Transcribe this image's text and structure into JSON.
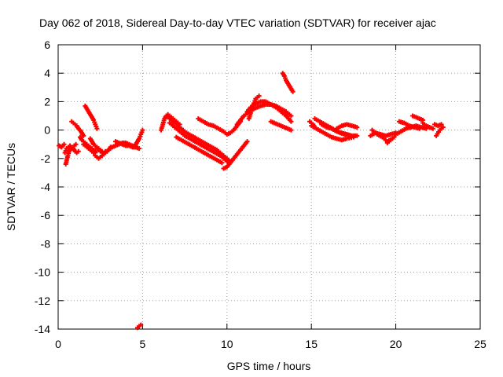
{
  "chart_data": {
    "type": "scatter",
    "title": "Day 062 of 2018, Sidereal Day-to-day VTEC variation (SDTVAR) for receiver ajac",
    "xlabel": "GPS time / hours",
    "ylabel": "SDTVAR / TECUs",
    "xlim": [
      0,
      25
    ],
    "ylim": [
      -14,
      6
    ],
    "xticks": [
      0,
      5,
      10,
      15,
      20,
      25
    ],
    "yticks": [
      6,
      4,
      2,
      0,
      -2,
      -4,
      -6,
      -8,
      -10,
      -12,
      -14
    ],
    "grid": true,
    "marker": "plus",
    "series": [
      {
        "name": "SDTVAR",
        "color": "#ff0000",
        "traces": [
          {
            "x": [
              0.05,
              0.2,
              0.35
            ],
            "y": [
              -1.1,
              -1.2,
              -1.0
            ]
          },
          {
            "x": [
              0.45,
              0.55,
              0.65,
              0.75,
              0.85,
              0.95,
              1.05
            ],
            "y": [
              -2.4,
              -1.9,
              -1.5,
              -1.3,
              -1.2,
              -1.1,
              -1.0
            ]
          },
          {
            "x": [
              0.4,
              0.5,
              0.6,
              0.7,
              0.8,
              0.9,
              1.0,
              1.1,
              1.2
            ],
            "y": [
              -1.6,
              -1.3,
              -1.2,
              -1.1,
              -1.2,
              -1.3,
              -1.5,
              -1.6,
              -1.5
            ]
          },
          {
            "x": [
              0.8,
              0.9,
              1.0,
              1.1,
              1.2,
              1.3,
              1.4,
              1.5
            ],
            "y": [
              0.6,
              0.5,
              0.4,
              0.3,
              0.1,
              0.0,
              -0.2,
              -0.4
            ]
          },
          {
            "x": [
              1.3,
              1.4,
              1.5,
              1.6,
              1.7,
              1.8,
              1.9,
              2.0,
              2.1,
              2.2
            ],
            "y": [
              -0.5,
              -0.7,
              -0.8,
              -0.9,
              -1.0,
              -1.1,
              -1.2,
              -1.3,
              -1.4,
              -1.5
            ]
          },
          {
            "x": [
              1.5,
              1.6,
              1.7,
              1.8,
              1.9,
              2.0,
              2.1,
              2.2
            ],
            "y": [
              -1.0,
              -1.1,
              -1.2,
              -1.3,
              -1.4,
              -1.5,
              -1.6,
              -1.6
            ]
          },
          {
            "x": [
              1.6,
              1.7,
              1.8,
              1.9,
              2.0,
              2.1,
              2.2,
              2.3
            ],
            "y": [
              1.7,
              1.5,
              1.3,
              1.1,
              0.9,
              0.7,
              0.4,
              0.1
            ]
          },
          {
            "x": [
              1.9,
              2.0,
              2.1,
              2.2,
              2.3,
              2.4,
              2.5,
              2.6
            ],
            "y": [
              -0.6,
              -0.8,
              -1.0,
              -1.1,
              -1.2,
              -1.3,
              -1.4,
              -1.5
            ]
          },
          {
            "x": [
              2.2,
              2.3,
              2.4,
              2.5,
              2.6,
              2.7,
              2.8,
              2.9,
              3.0,
              3.1
            ],
            "y": [
              -1.8,
              -1.9,
              -2.0,
              -1.9,
              -1.8,
              -1.7,
              -1.6,
              -1.5,
              -1.4,
              -1.2
            ]
          },
          {
            "x": [
              2.3,
              2.4,
              2.5,
              2.6,
              2.7,
              2.8,
              2.9,
              3.0,
              3.1,
              3.2
            ],
            "y": [
              -1.3,
              -1.4,
              -1.5,
              -1.6,
              -1.6,
              -1.5,
              -1.5,
              -1.4,
              -1.3,
              -1.2
            ]
          },
          {
            "x": [
              3.2,
              3.4,
              3.6,
              3.8,
              4.0,
              4.2,
              4.4,
              4.6
            ],
            "y": [
              -1.2,
              -1.1,
              -1.0,
              -0.9,
              -0.9,
              -1.0,
              -1.1,
              -1.2
            ]
          },
          {
            "x": [
              3.4,
              3.6,
              3.8,
              4.0,
              4.2,
              4.4,
              4.6,
              4.8
            ],
            "y": [
              -0.8,
              -0.9,
              -1.0,
              -1.1,
              -1.1,
              -1.2,
              -1.2,
              -1.3
            ]
          },
          {
            "x": [
              4.5,
              4.6,
              4.7,
              4.8,
              4.9,
              5.0
            ],
            "y": [
              -1.2,
              -1.0,
              -0.8,
              -0.6,
              -0.3,
              0.0
            ]
          },
          {
            "x": [
              4.7,
              4.8,
              4.9
            ],
            "y": [
              -13.9,
              -13.8,
              -13.7
            ]
          },
          {
            "x": [
              6.1,
              6.2,
              6.3,
              6.4,
              6.5,
              6.6,
              6.8,
              7.0,
              7.2
            ],
            "y": [
              0.0,
              0.4,
              0.8,
              1.0,
              1.1,
              1.0,
              0.8,
              0.6,
              0.4
            ]
          },
          {
            "x": [
              6.4,
              6.7,
              7.0,
              7.3,
              7.6,
              7.9,
              8.2,
              8.5,
              8.8,
              9.1,
              9.4,
              9.7,
              10.0,
              10.2
            ],
            "y": [
              1.0,
              0.7,
              0.4,
              0.1,
              -0.2,
              -0.4,
              -0.6,
              -0.8,
              -1.0,
              -1.2,
              -1.4,
              -1.7,
              -2.0,
              -2.2
            ]
          },
          {
            "x": [
              6.6,
              6.9,
              7.2,
              7.5,
              7.8,
              8.1,
              8.4,
              8.7,
              9.0,
              9.3,
              9.6,
              9.9,
              10.1
            ],
            "y": [
              0.5,
              0.2,
              -0.1,
              -0.4,
              -0.6,
              -0.8,
              -1.0,
              -1.2,
              -1.4,
              -1.6,
              -1.8,
              -2.1,
              -2.3
            ]
          },
          {
            "x": [
              7.0,
              7.3,
              7.6,
              7.9,
              8.2,
              8.5,
              8.8,
              9.1,
              9.4,
              9.7
            ],
            "y": [
              -0.5,
              -0.7,
              -0.9,
              -1.1,
              -1.3,
              -1.5,
              -1.7,
              -1.9,
              -2.1,
              -2.3
            ]
          },
          {
            "x": [
              9.8,
              10.0,
              10.2,
              10.4,
              10.6,
              10.8,
              11.0,
              11.2
            ],
            "y": [
              -2.7,
              -2.6,
              -2.3,
              -2.0,
              -1.7,
              -1.4,
              -1.1,
              -0.8
            ]
          },
          {
            "x": [
              8.3,
              8.6,
              8.9,
              9.2,
              9.5,
              9.8,
              10.0,
              10.2,
              10.4,
              10.6,
              10.8
            ],
            "y": [
              0.8,
              0.6,
              0.4,
              0.3,
              0.1,
              -0.1,
              -0.3,
              -0.2,
              0.0,
              0.3,
              0.6
            ]
          },
          {
            "x": [
              10.6,
              10.8,
              11.0,
              11.2,
              11.4,
              11.6,
              11.8,
              12.0,
              12.3,
              12.6,
              12.9,
              13.2,
              13.5,
              13.8
            ],
            "y": [
              0.4,
              0.7,
              1.0,
              1.2,
              1.4,
              1.5,
              1.6,
              1.7,
              1.8,
              1.8,
              1.7,
              1.5,
              1.3,
              1.0
            ]
          },
          {
            "x": [
              11.2,
              11.4,
              11.6,
              11.8,
              12.0,
              12.3,
              12.6,
              12.9,
              13.2,
              13.5,
              13.8
            ],
            "y": [
              1.3,
              1.6,
              1.8,
              1.9,
              2.0,
              2.0,
              1.8,
              1.6,
              1.3,
              1.0,
              0.6
            ]
          },
          {
            "x": [
              11.3,
              11.5,
              11.7,
              11.9
            ],
            "y": [
              0.8,
              1.6,
              2.2,
              2.4
            ]
          },
          {
            "x": [
              12.6,
              12.8,
              13.0,
              13.2,
              13.4,
              13.6,
              13.8
            ],
            "y": [
              0.6,
              0.5,
              0.4,
              0.3,
              0.2,
              0.1,
              0.0
            ]
          },
          {
            "x": [
              13.3,
              13.4,
              13.5,
              13.6,
              13.7,
              13.8,
              13.9
            ],
            "y": [
              4.0,
              3.8,
              3.5,
              3.3,
              3.1,
              2.9,
              2.7
            ]
          },
          {
            "x": [
              14.9,
              15.0,
              15.1,
              15.2
            ],
            "y": [
              0.6,
              0.5,
              0.4,
              0.2
            ]
          },
          {
            "x": [
              15.2,
              15.5,
              15.8,
              16.1,
              16.4,
              16.7,
              17.0,
              17.3
            ],
            "y": [
              0.8,
              0.6,
              0.4,
              0.2,
              0.0,
              -0.2,
              -0.3,
              -0.4
            ]
          },
          {
            "x": [
              15.0,
              15.3,
              15.6,
              15.9,
              16.2,
              16.5,
              16.8,
              17.1,
              17.5
            ],
            "y": [
              0.3,
              0.1,
              -0.1,
              -0.3,
              -0.5,
              -0.6,
              -0.7,
              -0.6,
              -0.5
            ]
          },
          {
            "x": [
              15.6,
              15.9,
              16.2,
              16.5,
              16.8,
              17.1,
              17.4,
              17.7
            ],
            "y": [
              0.4,
              0.2,
              0.1,
              -0.1,
              -0.2,
              -0.3,
              -0.4,
              -0.4
            ]
          },
          {
            "x": [
              16.5,
              16.8,
              17.1,
              17.4,
              17.7
            ],
            "y": [
              0.1,
              0.3,
              0.4,
              0.3,
              0.2
            ]
          },
          {
            "x": [
              18.5,
              18.8,
              19.1,
              19.4,
              19.7,
              20.0
            ],
            "y": [
              -0.4,
              -0.2,
              -0.3,
              -0.4,
              -0.3,
              -0.2
            ]
          },
          {
            "x": [
              18.6,
              18.9,
              19.2,
              19.5,
              19.8
            ],
            "y": [
              0.0,
              -0.3,
              -0.5,
              -0.8,
              -0.6
            ]
          },
          {
            "x": [
              19.5,
              19.7,
              19.9
            ],
            "y": [
              -0.9,
              -0.7,
              -0.5
            ]
          },
          {
            "x": [
              20.0,
              20.3,
              20.6,
              20.9,
              21.2,
              21.5,
              21.8
            ],
            "y": [
              -0.3,
              -0.1,
              0.1,
              0.2,
              0.3,
              0.2,
              0.1
            ]
          },
          {
            "x": [
              20.2,
              20.5,
              20.8,
              21.1,
              21.4
            ],
            "y": [
              0.6,
              0.5,
              0.3,
              0.2,
              0.1
            ]
          },
          {
            "x": [
              21.0,
              21.2,
              21.4,
              21.6
            ],
            "y": [
              1.0,
              0.9,
              0.8,
              0.7
            ]
          },
          {
            "x": [
              21.6,
              21.8,
              22.0,
              22.2
            ],
            "y": [
              0.5,
              0.3,
              0.2,
              0.1
            ]
          },
          {
            "x": [
              22.3,
              22.5,
              22.7
            ],
            "y": [
              0.4,
              0.3,
              0.4
            ]
          },
          {
            "x": [
              22.4,
              22.6,
              22.8
            ],
            "y": [
              -0.4,
              0.0,
              0.2
            ]
          }
        ]
      }
    ]
  }
}
